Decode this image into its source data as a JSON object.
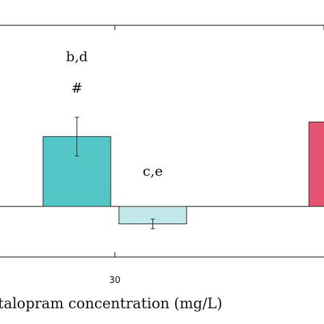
{
  "chart_data": {
    "type": "bar",
    "xlabel": "talopram concentration (mg/L)",
    "ylabel": "",
    "x_tick_labels": [
      "30"
    ],
    "ylim": [
      -0.6,
      1.9
    ],
    "grid": false,
    "bars": [
      {
        "group": "30",
        "value": 0.72,
        "error": 0.2,
        "color": "#55c6c6"
      },
      {
        "group": "30",
        "value": -0.18,
        "error": 0.05,
        "color": "#c0e8e8"
      },
      {
        "group": "",
        "value": 0.87,
        "error": null,
        "color": "#e75471"
      }
    ],
    "annotations": [
      {
        "text": "b,d",
        "bar_index": 0,
        "level": 2
      },
      {
        "text": "#",
        "bar_index": 0,
        "level": 1
      },
      {
        "text": "c,e",
        "bar_index": 1,
        "level": 1
      }
    ]
  },
  "colors": {
    "teal": "#55c6c6",
    "light_teal": "#c0e8e8",
    "pink": "#e75471"
  }
}
